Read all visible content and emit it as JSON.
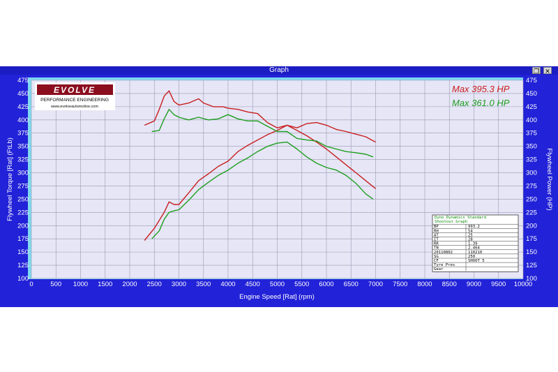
{
  "window": {
    "title": "Graph",
    "restore_icon": "restore-icon",
    "close_icon": "close-icon"
  },
  "logo": {
    "brand": "EVOLVE",
    "subtitle": "PERFORMANCE ENGINEERING",
    "url": "www.evolveautomotive.com"
  },
  "max_labels": [
    {
      "text": "Max 395.3 HP",
      "color": "#c81e1e"
    },
    {
      "text": "Max 361.0 HP",
      "color": "#1e9e1e"
    }
  ],
  "info_table": {
    "title": "Dyno Dynamics Standard",
    "subtitle": "Shootout Graph",
    "rows": [
      [
        "BP",
        "993.2"
      ],
      [
        "RH",
        "54"
      ],
      [
        "AT",
        "25"
      ],
      [
        "IT",
        "28"
      ],
      [
        "RR",
        "1.39"
      ],
      [
        "TN",
        "2.464"
      ],
      [
        "20110802",
        "110210"
      ],
      [
        "SG",
        "250"
      ],
      [
        "CF",
        "SHOOT 5"
      ],
      [
        "Tyre Pres",
        ""
      ],
      [
        "Gear",
        ""
      ]
    ]
  },
  "colors": {
    "plot_bg": "#e6e6f6",
    "frame": "#2222d8",
    "grid": "#9a9ab4",
    "series_red": "#c81e1e",
    "series_green": "#1e9e1e"
  },
  "chart_data": {
    "type": "line",
    "xlabel": "Engine Speed [Rat] (rpm)",
    "ylabel_left": "Flywheel Torque [Rat] (FtLb)",
    "ylabel_right": "Flywheel Power (HP)",
    "xlim": [
      0,
      10000
    ],
    "ylim": [
      100,
      475
    ],
    "x_ticks": [
      0,
      500,
      1000,
      1500,
      2000,
      2500,
      3000,
      3500,
      4000,
      4500,
      5000,
      5500,
      6000,
      6500,
      7000,
      7500,
      8000,
      8500,
      9000,
      9500,
      10000
    ],
    "y_ticks": [
      100,
      125,
      150,
      175,
      200,
      225,
      250,
      275,
      300,
      325,
      350,
      375,
      400,
      425,
      450,
      475
    ],
    "grid": true,
    "series": [
      {
        "kind": "torque",
        "color": "#c81e1e",
        "x": [
          2300,
          2500,
          2600,
          2700,
          2800,
          2900,
          3000,
          3200,
          3400,
          3500,
          3700,
          3900,
          4000,
          4200,
          4400,
          4600,
          4800,
          5000,
          5200,
          5400,
          5600,
          5800,
          6000,
          6200,
          6400,
          6600,
          6800,
          7000
        ],
        "y": [
          390,
          398,
          420,
          445,
          455,
          435,
          428,
          432,
          440,
          432,
          425,
          425,
          422,
          420,
          415,
          412,
          395,
          385,
          390,
          385,
          393,
          395,
          390,
          382,
          378,
          373,
          368,
          358
        ]
      },
      {
        "kind": "power",
        "color": "#c81e1e",
        "x": [
          2300,
          2500,
          2700,
          2800,
          2900,
          3000,
          3200,
          3400,
          3600,
          3800,
          4000,
          4200,
          4400,
          4600,
          4800,
          5000,
          5200,
          5400,
          5600,
          5800,
          6000,
          6200,
          6400,
          6600,
          6800,
          7000
        ],
        "y": [
          172,
          195,
          225,
          245,
          240,
          240,
          262,
          285,
          298,
          312,
          322,
          340,
          352,
          362,
          372,
          380,
          390,
          380,
          370,
          358,
          345,
          330,
          315,
          300,
          285,
          270
        ]
      },
      {
        "kind": "torque",
        "color": "#1e9e1e",
        "x": [
          2450,
          2600,
          2700,
          2800,
          2900,
          3000,
          3200,
          3400,
          3600,
          3800,
          4000,
          4200,
          4400,
          4600,
          4800,
          5000,
          5200,
          5400,
          5600,
          5800,
          6000,
          6200,
          6400,
          6600,
          6800,
          6950
        ],
        "y": [
          378,
          380,
          402,
          420,
          410,
          405,
          400,
          405,
          400,
          402,
          410,
          402,
          398,
          398,
          388,
          378,
          378,
          365,
          362,
          360,
          350,
          345,
          340,
          338,
          335,
          330
        ]
      },
      {
        "kind": "power",
        "color": "#1e9e1e",
        "x": [
          2450,
          2600,
          2700,
          2800,
          2900,
          3000,
          3200,
          3400,
          3600,
          3800,
          4000,
          4200,
          4400,
          4600,
          4800,
          5000,
          5200,
          5400,
          5600,
          5800,
          6000,
          6200,
          6400,
          6600,
          6800,
          6950
        ],
        "y": [
          175,
          190,
          212,
          225,
          228,
          230,
          248,
          268,
          282,
          295,
          305,
          318,
          328,
          340,
          350,
          356,
          358,
          345,
          330,
          318,
          310,
          305,
          295,
          280,
          260,
          250
        ]
      }
    ]
  }
}
